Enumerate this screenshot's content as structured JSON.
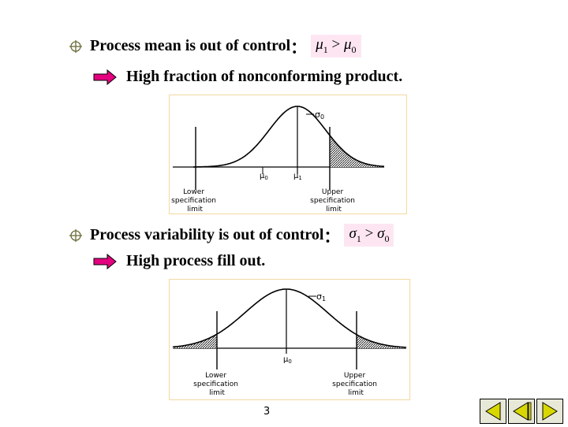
{
  "section1": {
    "heading": "Process mean is out of control",
    "colon": "：",
    "formula": {
      "left": "μ",
      "left_sub": "1",
      "op": ">",
      "right": "μ",
      "right_sub": "0"
    },
    "subpoint": "High fraction of  nonconforming product."
  },
  "section2": {
    "heading": "Process variability is out of control",
    "colon": "：",
    "formula": {
      "left": "σ",
      "left_sub": "1",
      "op": ">",
      "right": "σ",
      "right_sub": "0"
    },
    "subpoint": "High process fill out."
  },
  "figure1": {
    "sigma_label": "σ",
    "sigma_sub": "0",
    "mu0_label": "μ",
    "mu0_sub": "0",
    "mu1_label": "μ",
    "mu1_sub": "1",
    "lower_spec": [
      "Lower",
      "specification",
      "limit"
    ],
    "upper_spec": [
      "Upper",
      "specification",
      "limit"
    ]
  },
  "figure2": {
    "sigma_label": "σ",
    "sigma_sub": "1",
    "mu0_label": "μ",
    "mu0_sub": "0",
    "lower_spec": [
      "Lower",
      "specification",
      "limit"
    ],
    "upper_spec": [
      "Upper",
      "specification",
      "limit"
    ]
  },
  "page_number": "3",
  "colors": {
    "arrow": "#e4007f",
    "formula_bg": "#fde6f2",
    "nav_bg": "#e8e8d8",
    "nav_arrow": "#d8d800"
  },
  "nav": {
    "first": "first-slide-icon",
    "prev": "previous-slide-icon",
    "next": "next-slide-icon"
  }
}
